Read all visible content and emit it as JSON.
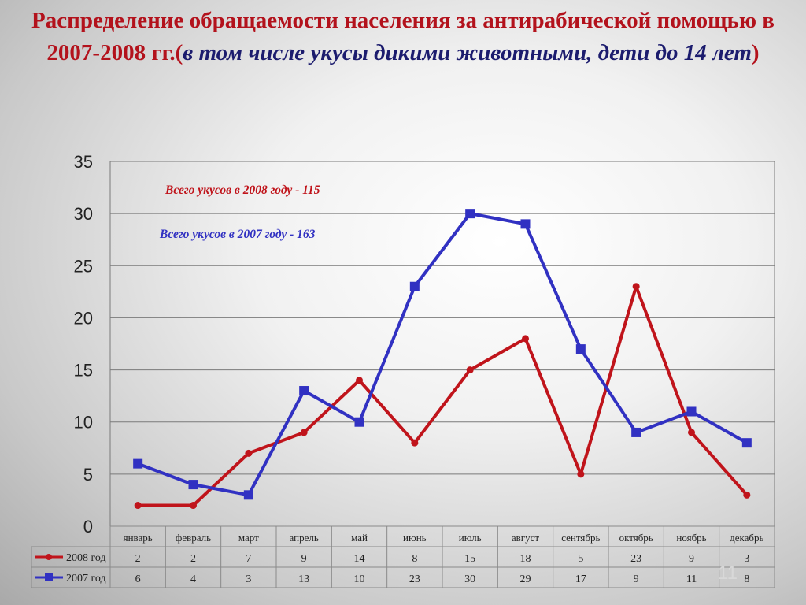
{
  "title": {
    "main": "Распределение обращаемости населения за антирабической помощью в 2007-2008 гг.(",
    "sub": "в том числе укусы дикими животными, дети до 14 лет",
    "close": ")"
  },
  "notes": {
    "total_2008": "Всего укусов в 2008 году - 115",
    "total_2007": "Всего укусов в 2007 году - 163"
  },
  "slide_number": "11",
  "colors": {
    "series_2008": "#c0141b",
    "series_2007": "#3131c2",
    "title": "#b3121c",
    "subtitle": "#1c1c6e"
  },
  "chart_data": {
    "type": "line",
    "categories": [
      "январь",
      "февраль",
      "март",
      "апрель",
      "май",
      "июнь",
      "июль",
      "август",
      "сентябрь",
      "октябрь",
      "ноябрь",
      "декабрь"
    ],
    "series": [
      {
        "name": "2008 год",
        "marker": "circle",
        "color": "#c0141b",
        "values": [
          2,
          2,
          7,
          9,
          14,
          8,
          15,
          18,
          5,
          23,
          9,
          3
        ]
      },
      {
        "name": "2007 год",
        "marker": "square",
        "color": "#3131c2",
        "values": [
          6,
          4,
          3,
          13,
          10,
          23,
          30,
          29,
          17,
          9,
          11,
          8
        ]
      }
    ],
    "ylim": [
      0,
      35
    ],
    "yticks": [
      0,
      5,
      10,
      15,
      20,
      25,
      30,
      35
    ],
    "grid": true,
    "legend": "data-table-left",
    "data_table": true
  }
}
